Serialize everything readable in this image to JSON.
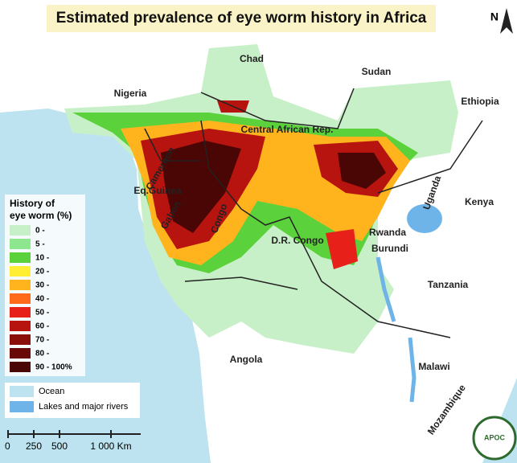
{
  "title": "Estimated prevalence of eye worm history in Africa",
  "countries": [
    "Chad",
    "Sudan",
    "Nigeria",
    "Ethiopia",
    "Central African Rep.",
    "Cameroon",
    "Eq.Guinea",
    "Gabon",
    "Congo",
    "D.R. Congo",
    "Uganda",
    "Kenya",
    "Rwanda",
    "Burundi",
    "Tanzania",
    "Angola",
    "Malawi",
    "Mozambique"
  ],
  "legend": {
    "title": [
      "History of",
      "eye worm (%)"
    ],
    "items": [
      {
        "label": "0 -",
        "color": "#c8f0c8"
      },
      {
        "label": "5 -",
        "color": "#8ee68e"
      },
      {
        "label": "10 -",
        "color": "#5bd23c"
      },
      {
        "label": "20 -",
        "color": "#ffee33"
      },
      {
        "label": "30 -",
        "color": "#ffb41e"
      },
      {
        "label": "40 -",
        "color": "#ff6a1a"
      },
      {
        "label": "50 -",
        "color": "#e8201a"
      },
      {
        "label": "60 -",
        "color": "#b8140f"
      },
      {
        "label": "70 -",
        "color": "#8a0f0a"
      },
      {
        "label": "80 -",
        "color": "#6a0a08"
      },
      {
        "label": "90 - 100%",
        "color": "#4a0604"
      }
    ]
  },
  "base_legend": [
    {
      "label": "Ocean",
      "color": "#bde3f0"
    },
    {
      "label": "Lakes and major rivers",
      "color": "#6fb4e8"
    }
  ],
  "scale": [
    "0",
    "250",
    "500",
    "1 000 Km"
  ],
  "north": "N",
  "logo": "APOC"
}
